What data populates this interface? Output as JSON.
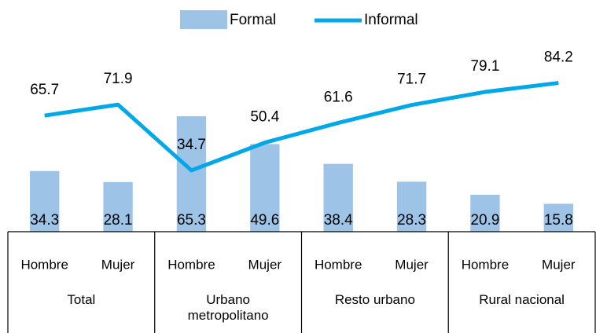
{
  "chart_data": {
    "type": "combo",
    "categories": [
      "Hombre",
      "Mujer",
      "Hombre",
      "Mujer",
      "Hombre",
      "Mujer",
      "Hombre",
      "Mujer"
    ],
    "groups": [
      "Total",
      "Urbano metropolitano",
      "Resto urbano",
      "Rural nacional"
    ],
    "series": [
      {
        "name": "Formal",
        "type": "bar",
        "color": "#9dc3e6",
        "values": [
          34.3,
          28.1,
          65.3,
          49.6,
          38.4,
          28.3,
          20.9,
          15.8
        ]
      },
      {
        "name": "Informal",
        "type": "line",
        "color": "#00a8e8",
        "values": [
          65.7,
          71.9,
          34.7,
          50.4,
          61.6,
          71.7,
          79.1,
          84.2
        ]
      }
    ],
    "ylim": [
      0,
      100
    ],
    "legend": "top"
  }
}
